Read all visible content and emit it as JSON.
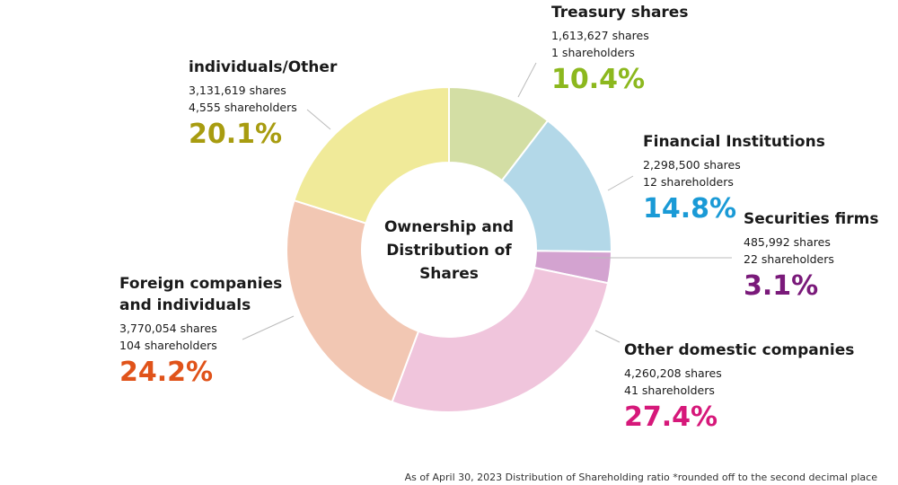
{
  "chart_data": {
    "type": "donut",
    "title": "Ownership and Distribution of Shares",
    "categories": [
      "Treasury shares",
      "Financial Institutions",
      "Securities firms",
      "Other domestic companies",
      "Foreign companies and individuals",
      "individuals/Other"
    ],
    "values": [
      10.4,
      14.8,
      3.1,
      27.4,
      24.2,
      20.1
    ],
    "value_labels": [
      "10.4%",
      "14.8%",
      "3.1%",
      "27.4%",
      "24.2%",
      "20.1%"
    ],
    "shares": [
      "1,613,627 shares",
      "2,298,500 shares",
      "485,992 shares",
      "4,260,208 shares",
      "3,770,054 shares",
      "3,131,619 shares"
    ],
    "shareholders": [
      "1 shareholders",
      "12 shareholders",
      "22 shareholders",
      "41 shareholders",
      "104 shareholders",
      "4,555 shareholders"
    ],
    "colors": [
      "#d3dea4",
      "#b3d8e8",
      "#d3a3d0",
      "#f0c5dc",
      "#f2c7b3",
      "#f0ea99"
    ],
    "label_colors": [
      "#8cb81e",
      "#1a9ad6",
      "#7a1a7a",
      "#d6187a",
      "#e0531a",
      "#a89c10"
    ],
    "footnote": "As of April 30, 2023 Distribution of Shareholding ratio *rounded off to the second decimal place"
  }
}
